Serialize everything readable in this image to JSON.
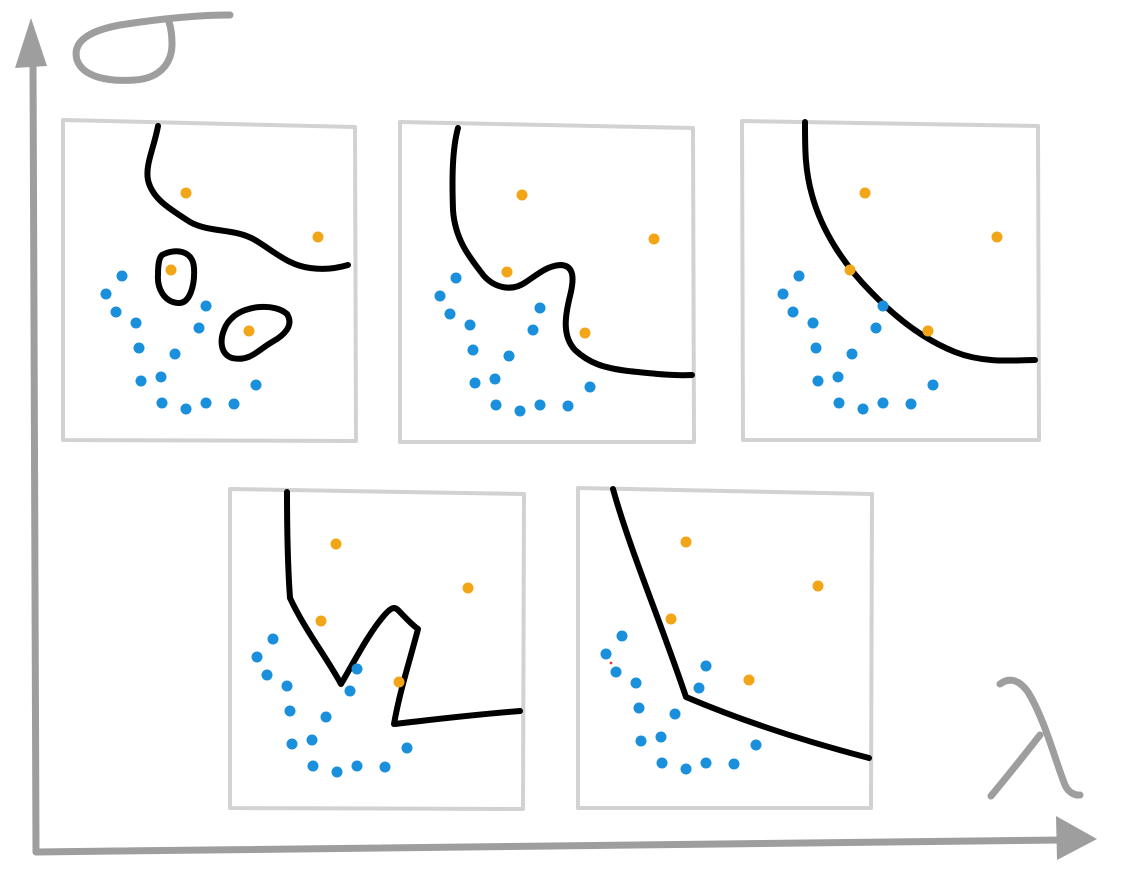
{
  "colors": {
    "axis": "#9e9e9e",
    "frame": "#d2d2d2",
    "boundary": "#000000",
    "class_blue": "#1a8fdc",
    "class_orange": "#f2a516"
  },
  "axes": {
    "vertical_label_glyph": "sigma-symbol",
    "horizontal_label_glyph": "lambda-symbol"
  },
  "panels": [
    {
      "id": "panel-1",
      "boundary_style": "wiggly-with-islands"
    },
    {
      "id": "panel-2",
      "boundary_style": "curvy"
    },
    {
      "id": "panel-3",
      "boundary_style": "smooth-arc"
    },
    {
      "id": "panel-4",
      "boundary_style": "jagged-piecewise"
    },
    {
      "id": "panel-5",
      "boundary_style": "two-segment-linear"
    }
  ]
}
